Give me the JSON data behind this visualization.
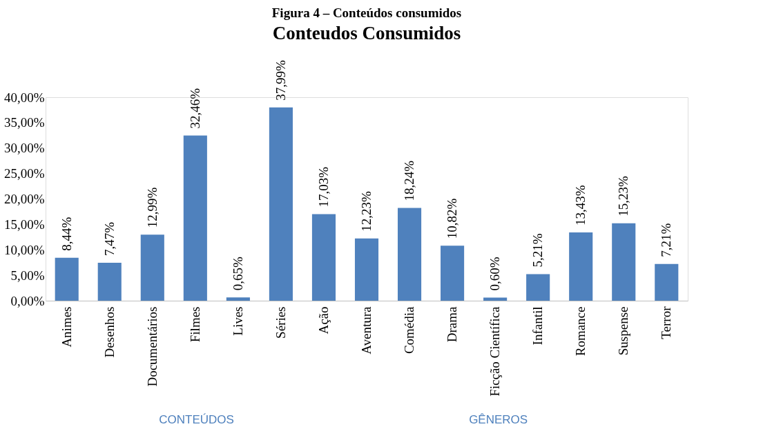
{
  "chart_data": {
    "type": "bar",
    "title": "Conteudos Consumidos",
    "categories": [
      "Animes",
      "Desenhos",
      "Documentários",
      "Filmes",
      "Lives",
      "Séries",
      "Ação",
      "Aventura",
      "Comédia",
      "Drama",
      "Ficção Científica",
      "Infantil",
      "Romance",
      "Suspense",
      "Terror"
    ],
    "values": [
      8.44,
      7.47,
      12.99,
      32.46,
      0.65,
      37.99,
      17.03,
      12.23,
      18.24,
      10.82,
      0.6,
      5.21,
      13.43,
      15.23,
      7.21
    ],
    "value_labels": [
      "8,44%",
      "7,47%",
      "12,99%",
      "32,46%",
      "0,65%",
      "37,99%",
      "17,03%",
      "12,23%",
      "18,24%",
      "10,82%",
      "0,60%",
      "5,21%",
      "13,43%",
      "15,23%",
      "7,21%"
    ],
    "color": "#4f81bd",
    "ylim": [
      0,
      40
    ],
    "yticks": [
      {
        "value": 0,
        "label": "0,00%"
      },
      {
        "value": 5,
        "label": "5,00%"
      },
      {
        "value": 10,
        "label": "10,00%"
      },
      {
        "value": 15,
        "label": "15,00%"
      },
      {
        "value": 20,
        "label": "20,00%"
      },
      {
        "value": 25,
        "label": "25,00%"
      },
      {
        "value": 30,
        "label": "30,00%"
      },
      {
        "value": 35,
        "label": "35,00%"
      },
      {
        "value": 40,
        "label": "40,00%"
      }
    ],
    "grid": false,
    "annotations": [
      "Figura 4 – Conteúdos consumidos",
      "CONTEÚDOS",
      "GÊNEROS"
    ]
  }
}
